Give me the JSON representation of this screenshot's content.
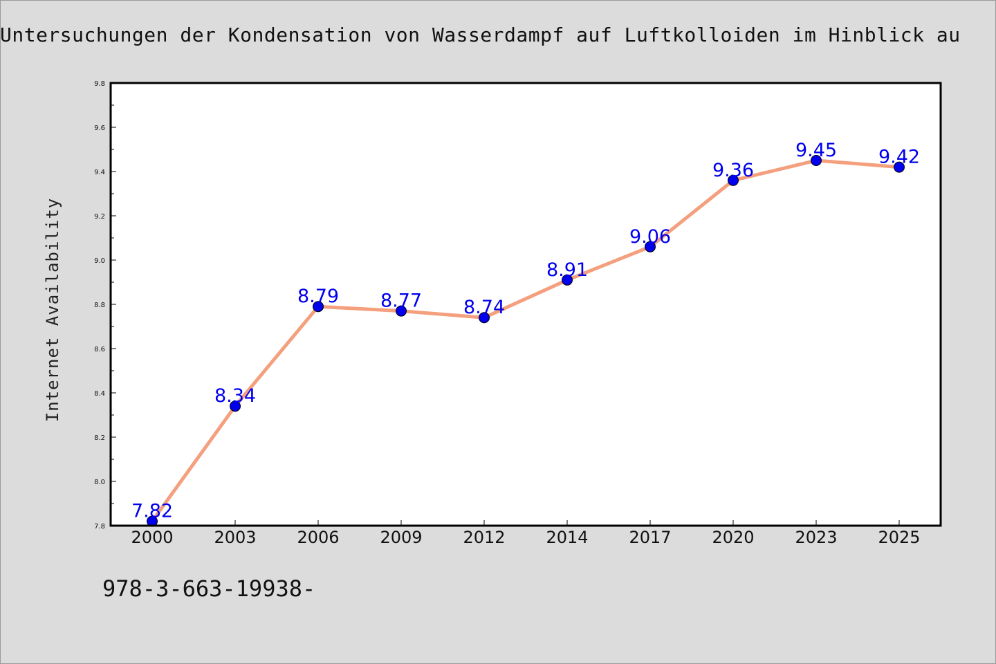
{
  "chart_data": {
    "type": "line",
    "title": "Untersuchungen der Kondensation von Wasserdampf auf Luftkolloiden im Hinblick au",
    "xlabel": "",
    "ylabel": "Internet Availability",
    "categories": [
      "2000",
      "2003",
      "2006",
      "2009",
      "2012",
      "2014",
      "2017",
      "2020",
      "2023",
      "2025"
    ],
    "series": [
      {
        "values": [
          7.82,
          8.34,
          8.79,
          8.77,
          8.74,
          8.91,
          9.06,
          9.36,
          9.45,
          9.42
        ],
        "data_labels": [
          "7.82",
          "8.34",
          "8.79",
          "8.77",
          "8.74",
          "8.91",
          "9.06",
          "9.36",
          "9.45",
          "9.42"
        ],
        "line_color": "#f4a07e",
        "marker_color": "#0000ee",
        "label_color": "#0000ee"
      }
    ],
    "ylim": [
      7.8,
      9.8
    ],
    "yticks": [
      "7.8",
      "8.0",
      "8.2",
      "8.4",
      "8.6",
      "8.8",
      "9.0",
      "9.2",
      "9.4",
      "9.6",
      "9.8"
    ],
    "grid": false,
    "legend": "none",
    "background": "#dcdcdc",
    "plot_background": "#ffffff"
  },
  "footer_text": "978-3-663-19938-"
}
